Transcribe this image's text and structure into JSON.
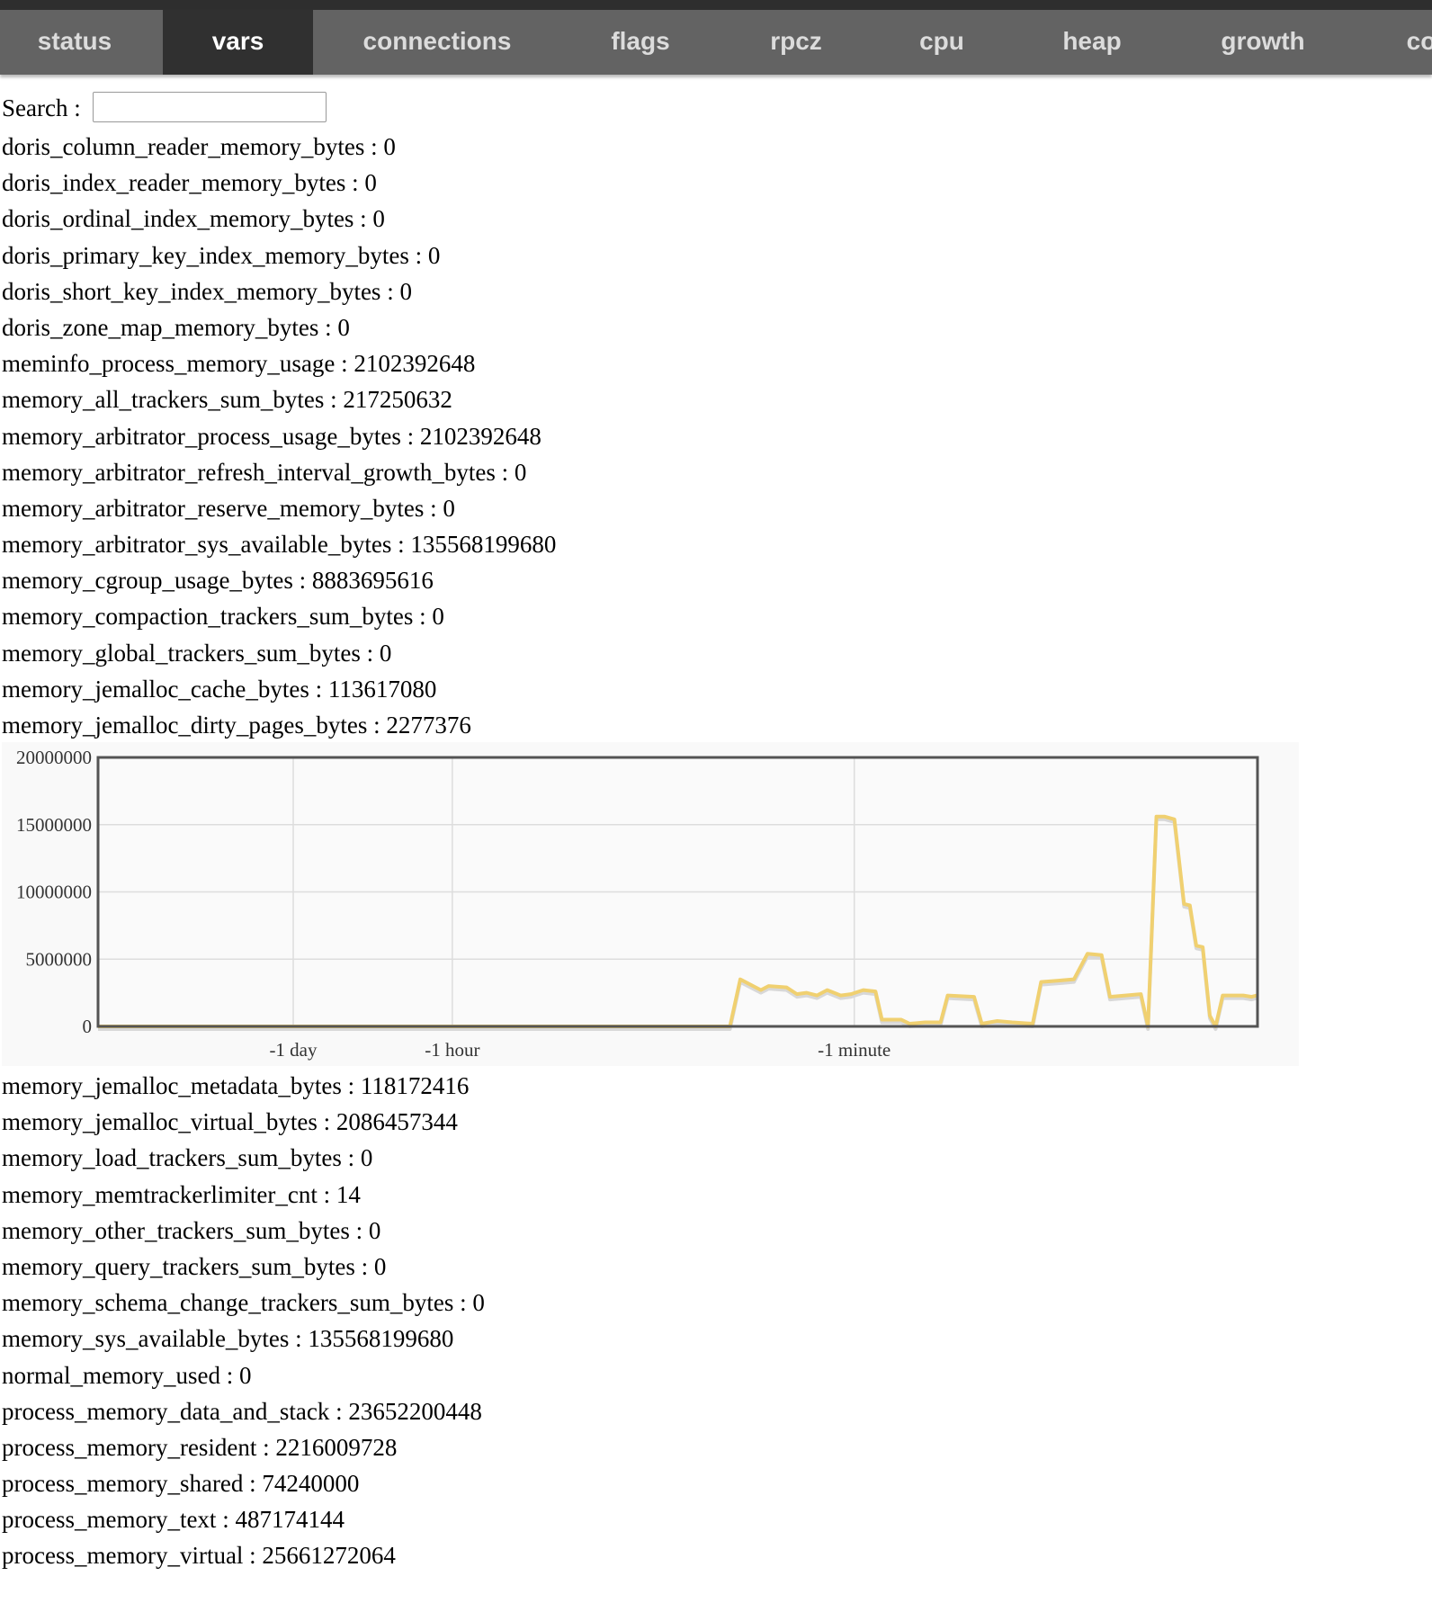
{
  "nav": {
    "tabs": [
      {
        "label": "status",
        "active": false
      },
      {
        "label": "vars",
        "active": true
      },
      {
        "label": "connections",
        "active": false
      },
      {
        "label": "flags",
        "active": false
      },
      {
        "label": "rpcz",
        "active": false
      },
      {
        "label": "cpu",
        "active": false
      },
      {
        "label": "heap",
        "active": false
      },
      {
        "label": "growth",
        "active": false
      },
      {
        "label": "co",
        "active": false
      }
    ]
  },
  "search": {
    "label": "Search :",
    "value": ""
  },
  "vars_before_chart": [
    "doris_column_reader_memory_bytes : 0",
    "doris_index_reader_memory_bytes : 0",
    "doris_ordinal_index_memory_bytes : 0",
    "doris_primary_key_index_memory_bytes : 0",
    "doris_short_key_index_memory_bytes : 0",
    "doris_zone_map_memory_bytes : 0",
    "meminfo_process_memory_usage : 2102392648",
    "memory_all_trackers_sum_bytes : 217250632",
    "memory_arbitrator_process_usage_bytes : 2102392648",
    "memory_arbitrator_refresh_interval_growth_bytes : 0",
    "memory_arbitrator_reserve_memory_bytes : 0",
    "memory_arbitrator_sys_available_bytes : 135568199680",
    "memory_cgroup_usage_bytes : 8883695616",
    "memory_compaction_trackers_sum_bytes : 0",
    "memory_global_trackers_sum_bytes : 0",
    "memory_jemalloc_cache_bytes : 113617080",
    "memory_jemalloc_dirty_pages_bytes : 2277376"
  ],
  "vars_after_chart": [
    "memory_jemalloc_metadata_bytes : 118172416",
    "memory_jemalloc_virtual_bytes : 2086457344",
    "memory_load_trackers_sum_bytes : 0",
    "memory_memtrackerlimiter_cnt : 14",
    "memory_other_trackers_sum_bytes : 0",
    "memory_query_trackers_sum_bytes : 0",
    "memory_schema_change_trackers_sum_bytes : 0",
    "memory_sys_available_bytes : 135568199680",
    "normal_memory_used : 0",
    "process_memory_data_and_stack : 23652200448",
    "process_memory_resident : 2216009728",
    "process_memory_shared : 74240000",
    "process_memory_text : 487174144",
    "process_memory_virtual : 25661272064"
  ],
  "colors": {
    "line": "#f0d070",
    "tab_bg": "#636363",
    "tab_active_bg": "#303030"
  },
  "chart_data": {
    "type": "line",
    "ylim": [
      0,
      20000000
    ],
    "yticks": [
      "20000000",
      "15000000",
      "10000000",
      "5000000",
      "0"
    ],
    "ytick_values": [
      20000000,
      15000000,
      10000000,
      5000000,
      0
    ],
    "xlim": [
      0,
      180
    ],
    "xticks": [
      {
        "label": "-1 day",
        "at": 30.3
      },
      {
        "label": "-1 hour",
        "at": 55.0
      },
      {
        "label": "-1 minute",
        "at": 117.4
      }
    ],
    "grid": true,
    "points": [
      [
        0,
        0
      ],
      [
        98.1,
        0
      ],
      [
        99.7,
        3500000
      ],
      [
        102.9,
        2700000
      ],
      [
        104.1,
        3000000
      ],
      [
        106.9,
        2900000
      ],
      [
        108.5,
        2400000
      ],
      [
        110.0,
        2500000
      ],
      [
        111.6,
        2300000
      ],
      [
        113.2,
        2700000
      ],
      [
        115.3,
        2300000
      ],
      [
        116.9,
        2400000
      ],
      [
        118.8,
        2700000
      ],
      [
        120.7,
        2600000
      ],
      [
        121.7,
        500000
      ],
      [
        124.7,
        500000
      ],
      [
        126.0,
        200000
      ],
      [
        128.4,
        300000
      ],
      [
        130.8,
        300000
      ],
      [
        131.9,
        2300000
      ],
      [
        136.0,
        2200000
      ],
      [
        137.2,
        200000
      ],
      [
        139.6,
        400000
      ],
      [
        141.9,
        300000
      ],
      [
        145.1,
        200000
      ],
      [
        146.4,
        3300000
      ],
      [
        149.1,
        3400000
      ],
      [
        151.5,
        3500000
      ],
      [
        153.6,
        5400000
      ],
      [
        155.8,
        5300000
      ],
      [
        157.1,
        2200000
      ],
      [
        159.5,
        2300000
      ],
      [
        161.9,
        2400000
      ],
      [
        163.0,
        0
      ],
      [
        164.3,
        15600000
      ],
      [
        165.6,
        15600000
      ],
      [
        167.1,
        15400000
      ],
      [
        168.6,
        9100000
      ],
      [
        169.5,
        9000000
      ],
      [
        170.5,
        6000000
      ],
      [
        171.5,
        5900000
      ],
      [
        172.6,
        800000
      ],
      [
        173.5,
        0
      ],
      [
        174.6,
        2300000
      ],
      [
        177.8,
        2300000
      ],
      [
        179.1,
        2200000
      ],
      [
        179.9,
        2300000
      ]
    ]
  }
}
